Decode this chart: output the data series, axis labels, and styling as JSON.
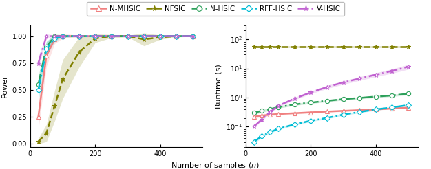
{
  "x": [
    25,
    50,
    75,
    100,
    150,
    200,
    250,
    300,
    350,
    400,
    450,
    500
  ],
  "power": {
    "N-MHSIC": [
      0.25,
      0.82,
      0.97,
      1.0,
      1.0,
      1.0,
      1.0,
      1.0,
      1.0,
      1.0,
      1.0,
      1.0
    ],
    "NFSIC": [
      0.02,
      0.1,
      0.35,
      0.6,
      0.85,
      0.98,
      1.0,
      1.0,
      0.97,
      0.99,
      1.0,
      1.0
    ],
    "N-HSIC": [
      0.55,
      0.9,
      1.0,
      1.0,
      1.0,
      1.0,
      1.0,
      1.0,
      1.0,
      1.0,
      1.0,
      1.0
    ],
    "RFF-HSIC": [
      0.5,
      0.88,
      0.98,
      1.0,
      1.0,
      1.0,
      1.0,
      1.0,
      1.0,
      1.0,
      1.0,
      1.0
    ],
    "V-HSIC": [
      0.75,
      1.0,
      1.0,
      1.0,
      1.0,
      1.0,
      1.0,
      1.0,
      1.0,
      1.0,
      1.0,
      1.0
    ]
  },
  "power_std": {
    "N-MHSIC": [
      0.12,
      0.1,
      0.04,
      0.02,
      0.01,
      0.005,
      0.002,
      0.001,
      0.001,
      0.001,
      0.001,
      0.001
    ],
    "NFSIC": [
      0.03,
      0.08,
      0.14,
      0.18,
      0.14,
      0.04,
      0.015,
      0.008,
      0.06,
      0.02,
      0.008,
      0.004
    ],
    "N-HSIC": [
      0.08,
      0.05,
      0.02,
      0.01,
      0.005,
      0.002,
      0.001,
      0.001,
      0.001,
      0.001,
      0.001,
      0.001
    ],
    "RFF-HSIC": [
      0.1,
      0.07,
      0.03,
      0.01,
      0.005,
      0.002,
      0.001,
      0.001,
      0.001,
      0.001,
      0.001,
      0.001
    ],
    "V-HSIC": [
      0.06,
      0.02,
      0.01,
      0.004,
      0.001,
      0.001,
      0.001,
      0.001,
      0.001,
      0.001,
      0.001,
      0.001
    ]
  },
  "runtime": {
    "N-MHSIC": [
      0.22,
      0.24,
      0.26,
      0.27,
      0.29,
      0.31,
      0.33,
      0.35,
      0.37,
      0.39,
      0.42,
      0.45
    ],
    "NFSIC": [
      55,
      55,
      55,
      55,
      55,
      55,
      55,
      55,
      55,
      55,
      55,
      55
    ],
    "N-HSIC": [
      0.3,
      0.35,
      0.4,
      0.47,
      0.58,
      0.67,
      0.77,
      0.88,
      0.97,
      1.08,
      1.18,
      1.35
    ],
    "RFF-HSIC": [
      0.03,
      0.048,
      0.065,
      0.085,
      0.12,
      0.16,
      0.2,
      0.26,
      0.32,
      0.39,
      0.46,
      0.55
    ],
    "V-HSIC": [
      0.1,
      0.18,
      0.32,
      0.52,
      0.92,
      1.5,
      2.3,
      3.3,
      4.5,
      6.1,
      8.2,
      11.5
    ]
  },
  "runtime_std": {
    "N-MHSIC": [
      0.03,
      0.02,
      0.02,
      0.02,
      0.02,
      0.02,
      0.02,
      0.02,
      0.02,
      0.02,
      0.02,
      0.02
    ],
    "NFSIC": [
      4,
      4,
      4,
      4,
      4,
      4,
      4,
      4,
      4,
      4,
      4,
      4
    ],
    "N-HSIC": [
      0.04,
      0.04,
      0.04,
      0.04,
      0.05,
      0.05,
      0.06,
      0.07,
      0.08,
      0.09,
      0.1,
      0.12
    ],
    "RFF-HSIC": [
      0.004,
      0.005,
      0.006,
      0.007,
      0.009,
      0.011,
      0.014,
      0.018,
      0.022,
      0.027,
      0.033,
      0.04
    ],
    "V-HSIC": [
      0.01,
      0.02,
      0.03,
      0.05,
      0.09,
      0.16,
      0.28,
      0.45,
      0.65,
      0.95,
      1.4,
      2.2
    ]
  },
  "colors": {
    "N-MHSIC": "#f08080",
    "NFSIC": "#808000",
    "N-HSIC": "#2ca05a",
    "RFF-HSIC": "#00bcd4",
    "V-HSIC": "#c060d0"
  },
  "markers": {
    "N-MHSIC": "^",
    "NFSIC": "*",
    "N-HSIC": "o",
    "RFF-HSIC": "D",
    "V-HSIC": "*"
  },
  "linestyles": {
    "N-MHSIC": "-",
    "NFSIC": "--",
    "N-HSIC": "-.",
    "RFF-HSIC": "-.",
    "V-HSIC": "-."
  },
  "markerfacecolors": {
    "N-MHSIC": "white",
    "NFSIC": "#808000",
    "N-HSIC": "white",
    "RFF-HSIC": "white",
    "V-HSIC": "white"
  },
  "fill_alpha": 0.2,
  "xlabel": "Number of samples $(n)$",
  "ylabel_left": "Power",
  "ylabel_right": "Runtime (s)",
  "power_xlim": [
    0,
    530
  ],
  "power_ylim": [
    -0.03,
    1.1
  ],
  "power_yticks": [
    0.0,
    0.25,
    0.5,
    0.75,
    1.0
  ],
  "power_xticks": [
    0,
    200,
    400
  ],
  "runtime_xlim": [
    0,
    530
  ],
  "runtime_ylim": [
    0.02,
    300
  ],
  "runtime_xticks": [
    0,
    200,
    400
  ]
}
